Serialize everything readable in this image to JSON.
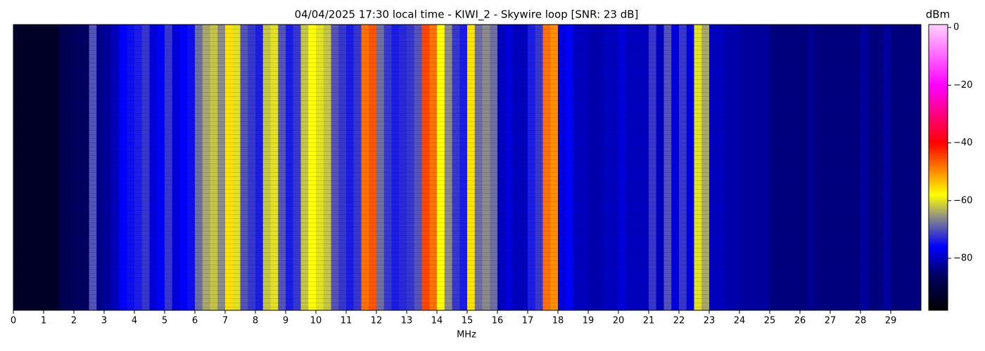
{
  "chart_data": {
    "type": "spectrogram",
    "title": "04/04/2025 17:30 local time - KIWI_2 - Skywire loop [SNR: 23 dB]",
    "xlabel": "MHz",
    "colorbar_label": "dBm",
    "xlim": [
      0,
      30
    ],
    "xticks": [
      0,
      1,
      2,
      3,
      4,
      5,
      6,
      7,
      8,
      9,
      10,
      11,
      12,
      13,
      14,
      15,
      16,
      17,
      18,
      19,
      20,
      21,
      22,
      23,
      24,
      25,
      26,
      27,
      28,
      29
    ],
    "clim": [
      -98,
      1
    ],
    "cticks": [
      0,
      {
        "value": -20,
        "label": "−20"
      },
      {
        "value": -40,
        "label": "−40"
      },
      {
        "value": -60,
        "label": "−60"
      },
      {
        "value": -80,
        "label": "−80"
      }
    ],
    "colorscale": [
      [
        -98,
        "#000000"
      ],
      [
        -86,
        "#000060"
      ],
      [
        -76,
        "#0000ff"
      ],
      [
        -66,
        "#8a8a8a"
      ],
      [
        -58,
        "#ffff00"
      ],
      [
        -40,
        "#ff0000"
      ],
      [
        -20,
        "#ff00ff"
      ],
      [
        1,
        "#ffd0ff"
      ]
    ],
    "values": [
      -93,
      -93,
      -93,
      -93,
      -93,
      -93,
      -88,
      -87,
      -86,
      -86,
      -70,
      -83,
      -82,
      -80,
      -76,
      -75,
      -74,
      -72,
      -78,
      -76,
      -72,
      -78,
      -76,
      -75,
      -68,
      -64,
      -62,
      -66,
      -56,
      -60,
      -70,
      -72,
      -74,
      -62,
      -60,
      -70,
      -74,
      -72,
      -62,
      -58,
      -60,
      -62,
      -70,
      -72,
      -74,
      -72,
      -48,
      -46,
      -68,
      -72,
      -74,
      -73,
      -72,
      -70,
      -45,
      -48,
      -58,
      -66,
      -72,
      -74,
      -56,
      -68,
      -66,
      -68,
      -80,
      -78,
      -80,
      -80,
      -74,
      -72,
      -48,
      -50,
      -78,
      -76,
      -80,
      -80,
      -81,
      -81,
      -80,
      -80,
      -78,
      -80,
      -80,
      -80,
      -72,
      -80,
      -70,
      -78,
      -72,
      -78,
      -60,
      -64,
      -80,
      -80,
      -81,
      -81,
      -82,
      -82,
      -82,
      -82,
      -84,
      -84,
      -84,
      -84,
      -84,
      -83,
      -84,
      -84,
      -84,
      -84,
      -84,
      -84,
      -82,
      -84,
      -84,
      -82,
      -84,
      -84,
      -84,
      -84
    ]
  }
}
